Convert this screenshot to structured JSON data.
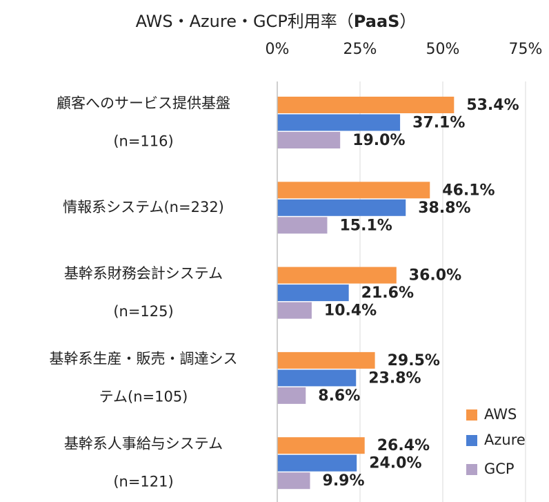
{
  "chart_data": {
    "type": "hbar",
    "title_parts": [
      "AWS・Azure・GCP利用率（",
      "PaaS",
      "）"
    ],
    "categories": [
      [
        "顧客へのサービス提供基盤",
        "(n=116)"
      ],
      [
        "情報系システム(n=232)"
      ],
      [
        "基幹系財務会計システム",
        "(n=125)"
      ],
      [
        "基幹系生産・販売・調達シス",
        "テム(n=105)"
      ],
      [
        "基幹系人事給与システム",
        "(n=121)"
      ]
    ],
    "series": [
      {
        "name": "AWS",
        "color": "#f79646",
        "label_color": "#e46c0a",
        "values": [
          53.4,
          46.1,
          36.0,
          29.5,
          26.4
        ],
        "value_labels": [
          "53.4%",
          "46.1%",
          "36.0%",
          "29.5%",
          "26.4%"
        ]
      },
      {
        "name": "Azure",
        "color": "#4a7fd4",
        "label_color": "#1f3050",
        "values": [
          37.1,
          38.8,
          21.6,
          23.8,
          24.0
        ],
        "value_labels": [
          "37.1%",
          "38.8%",
          "21.6%",
          "23.8%",
          "24.0%"
        ]
      },
      {
        "name": "GCP",
        "color": "#b3a2c7",
        "label_color": "#403152",
        "values": [
          19.0,
          15.1,
          10.4,
          8.6,
          9.9
        ],
        "value_labels": [
          "19.0%",
          "15.1%",
          "10.4%",
          "8.6%",
          "9.9%"
        ]
      }
    ],
    "xlim": [
      0,
      75
    ],
    "xticks": [
      {
        "value": 0,
        "label": "0%"
      },
      {
        "value": 25,
        "label": "25%"
      },
      {
        "value": 50,
        "label": "50%"
      },
      {
        "value": 75,
        "label": "75%"
      }
    ],
    "grid": true,
    "legend": "lower right"
  }
}
